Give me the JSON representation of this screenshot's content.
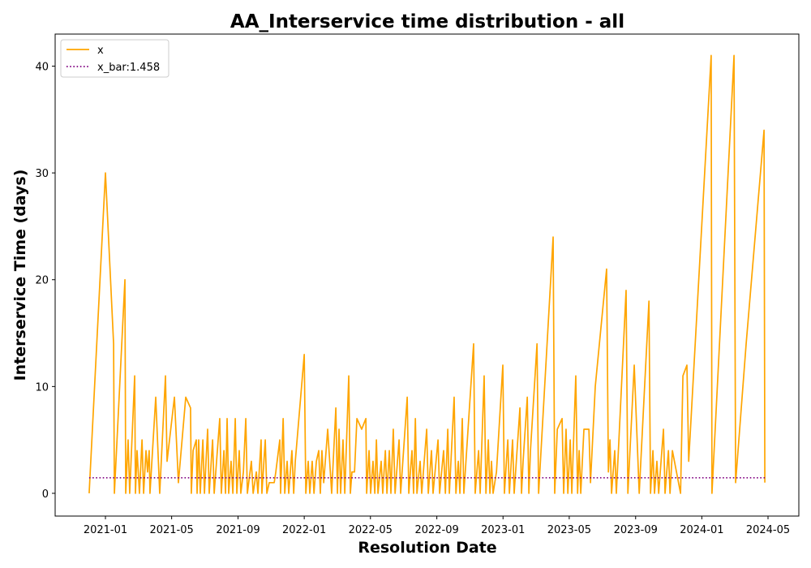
{
  "chart_data": {
    "type": "line",
    "title": "AA_Interservice time distribution - all",
    "x_label": "Resolution Date",
    "y_label": "Interservice Time (days)",
    "legend": "upper left",
    "xlim": [
      2020.747,
      2024.488
    ],
    "xticks": [
      {
        "value": 2021.0,
        "label": "2021-01"
      },
      {
        "value": 2021.333,
        "label": "2021-05"
      },
      {
        "value": 2021.667,
        "label": "2021-09"
      },
      {
        "value": 2022.0,
        "label": "2022-01"
      },
      {
        "value": 2022.333,
        "label": "2022-05"
      },
      {
        "value": 2022.667,
        "label": "2022-09"
      },
      {
        "value": 2023.0,
        "label": "2023-01"
      },
      {
        "value": 2023.333,
        "label": "2023-05"
      },
      {
        "value": 2023.667,
        "label": "2023-09"
      },
      {
        "value": 2024.0,
        "label": "2024-01"
      },
      {
        "value": 2024.333,
        "label": "2024-05"
      }
    ],
    "ylim": [
      -2.13,
      43.0
    ],
    "yticks": [
      0,
      10,
      20,
      30,
      40
    ],
    "series": [
      {
        "name": "x",
        "color": "#ffa500",
        "style": "solid",
        "x": [
          2020.918,
          2021.0,
          2021.041,
          2021.045,
          2021.098,
          2021.102,
          2021.114,
          2021.122,
          2021.147,
          2021.151,
          2021.159,
          2021.171,
          2021.184,
          2021.192,
          2021.204,
          2021.212,
          2021.22,
          2021.224,
          2021.253,
          2021.273,
          2021.302,
          2021.31,
          2021.347,
          2021.367,
          2021.404,
          2021.428,
          2021.432,
          2021.441,
          2021.457,
          2021.461,
          2021.469,
          2021.477,
          2021.49,
          2021.498,
          2021.514,
          2021.522,
          2021.539,
          2021.547,
          2021.575,
          2021.583,
          2021.596,
          2021.604,
          2021.612,
          2021.62,
          2021.632,
          2021.641,
          2021.653,
          2021.661,
          2021.673,
          2021.681,
          2021.694,
          2021.706,
          2021.714,
          2021.734,
          2021.743,
          2021.759,
          2021.767,
          2021.783,
          2021.787,
          2021.804,
          2021.812,
          2021.824,
          2021.849,
          2021.857,
          2021.877,
          2021.881,
          2021.894,
          2021.902,
          2021.914,
          2021.922,
          2021.938,
          2021.947,
          2021.955,
          2022.0,
          2022.008,
          2022.02,
          2022.028,
          2022.04,
          2022.049,
          2022.061,
          2022.073,
          2022.081,
          2022.089,
          2022.098,
          2022.118,
          2022.138,
          2022.159,
          2022.167,
          2022.175,
          2022.183,
          2022.195,
          2022.204,
          2022.224,
          2022.232,
          2022.24,
          2022.253,
          2022.265,
          2022.289,
          2022.31,
          2022.314,
          2022.326,
          2022.334,
          2022.346,
          2022.355,
          2022.363,
          2022.371,
          2022.387,
          2022.395,
          2022.408,
          2022.416,
          2022.428,
          2022.436,
          2022.448,
          2022.457,
          2022.477,
          2022.485,
          2022.518,
          2022.526,
          2022.542,
          2022.55,
          2022.559,
          2022.567,
          2022.583,
          2022.591,
          2022.616,
          2022.624,
          2022.64,
          2022.648,
          2022.673,
          2022.681,
          2022.701,
          2022.71,
          2022.722,
          2022.73,
          2022.754,
          2022.763,
          2022.775,
          2022.783,
          2022.795,
          2022.803,
          2022.852,
          2022.86,
          2022.877,
          2022.885,
          2022.905,
          2022.914,
          2022.926,
          2022.934,
          2022.942,
          2022.95,
          2022.967,
          2022.999,
          2023.007,
          2023.024,
          2023.032,
          2023.048,
          2023.056,
          2023.085,
          2023.093,
          2023.101,
          2023.122,
          2023.13,
          2023.138,
          2023.171,
          2023.179,
          2023.252,
          2023.26,
          2023.273,
          2023.297,
          2023.305,
          2023.317,
          2023.326,
          2023.338,
          2023.346,
          2023.366,
          2023.375,
          2023.383,
          2023.391,
          2023.407,
          2023.432,
          2023.44,
          2023.464,
          2023.521,
          2023.53,
          2023.538,
          2023.546,
          2023.562,
          2023.57,
          2023.619,
          2023.628,
          2023.66,
          2023.685,
          2023.734,
          2023.742,
          2023.754,
          2023.762,
          2023.774,
          2023.783,
          2023.795,
          2023.807,
          2023.815,
          2023.832,
          2023.84,
          2023.852,
          2023.893,
          2023.905,
          2023.925,
          2023.934,
          2024.047,
          2024.051,
          2024.162,
          2024.17,
          2024.223,
          2024.313,
          2024.317
        ],
        "values": [
          0,
          30,
          14,
          0,
          20,
          0,
          5,
          0,
          11,
          0,
          4,
          0,
          5,
          0,
          4,
          2,
          4,
          0,
          9,
          0,
          11,
          3,
          9,
          1,
          9,
          8,
          0,
          4,
          5,
          0,
          5,
          0,
          5,
          0,
          6,
          0,
          5,
          0,
          7,
          0,
          4,
          0,
          7,
          0,
          3,
          0,
          7,
          0,
          4,
          0,
          2,
          7,
          0,
          3,
          0,
          2,
          0,
          5,
          0,
          5,
          0,
          1,
          1,
          2,
          5,
          0,
          7,
          0,
          3,
          0,
          4,
          0,
          3,
          13,
          0,
          3,
          0,
          3,
          0,
          3,
          4,
          0,
          4,
          1,
          6,
          0,
          8,
          0,
          6,
          0,
          5,
          0,
          11,
          0,
          2,
          2,
          7,
          6,
          7,
          0,
          4,
          0,
          3,
          0,
          5,
          0,
          3,
          0,
          4,
          0,
          4,
          0,
          6,
          0,
          5,
          0,
          9,
          0,
          4,
          0,
          7,
          0,
          3,
          0,
          6,
          0,
          4,
          0,
          5,
          0,
          4,
          0,
          6,
          0,
          9,
          0,
          3,
          0,
          7,
          0,
          14,
          0,
          4,
          0,
          11,
          0,
          5,
          0,
          3,
          0,
          2,
          12,
          0,
          5,
          0,
          5,
          0,
          8,
          0,
          3,
          9,
          0,
          4,
          14,
          0,
          24,
          0,
          6,
          7,
          0,
          6,
          0,
          5,
          0,
          11,
          0,
          4,
          0,
          6,
          6,
          1,
          10,
          21,
          2,
          5,
          0,
          4,
          0,
          19,
          0,
          12,
          0,
          18,
          0,
          4,
          0,
          3,
          0,
          3,
          6,
          0,
          4,
          0,
          4,
          0,
          11,
          12,
          3,
          41,
          0,
          41,
          1,
          14,
          34,
          1
        ]
      },
      {
        "name": "x_bar:1.458",
        "color": "#800080",
        "style": "dotted",
        "x": [
          2020.918,
          2024.317
        ],
        "values": [
          1.458,
          1.458
        ]
      }
    ]
  }
}
